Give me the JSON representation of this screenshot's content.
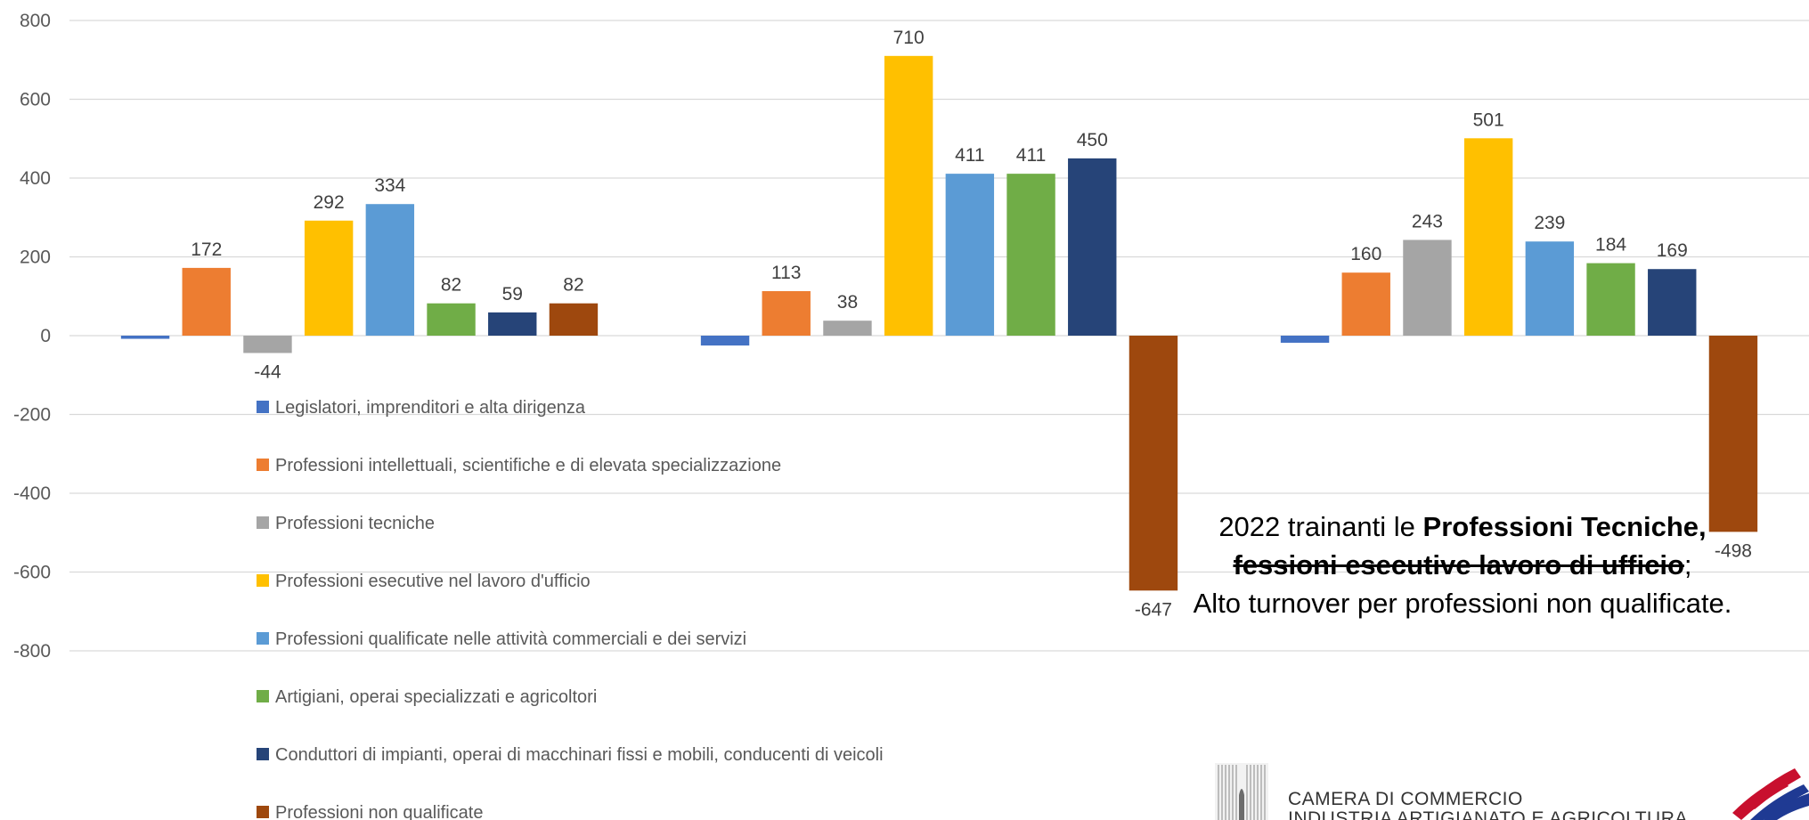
{
  "chart_data": {
    "type": "bar",
    "y_axis": {
      "ticks": [
        "800",
        "600",
        "400",
        "200",
        "0",
        "-200",
        "-400",
        "-600",
        "-800"
      ],
      "ylim": [
        -800,
        800
      ]
    },
    "grid": true,
    "categories": [
      "",
      "",
      ""
    ],
    "series": [
      {
        "name": "Legislatori, imprenditori e alta dirigenza",
        "color": "#4472C4",
        "values": [
          -8,
          -25,
          -18
        ],
        "labels": [
          "",
          "",
          ""
        ]
      },
      {
        "name": "Professioni intellettuali, scientifiche e di elevata specializzazione",
        "color": "#ED7D31",
        "values": [
          172,
          113,
          160
        ],
        "labels": [
          "172",
          "113",
          "160"
        ]
      },
      {
        "name": "Professioni tecniche",
        "color": "#A5A5A5",
        "values": [
          -44,
          38,
          243
        ],
        "labels": [
          "-44",
          "38",
          "243"
        ]
      },
      {
        "name": "Professioni esecutive nel lavoro d'ufficio",
        "color": "#FFC000",
        "values": [
          292,
          710,
          501
        ],
        "labels": [
          "292",
          "710",
          "501"
        ]
      },
      {
        "name": "Professioni qualificate nelle attività commerciali e dei servizi",
        "color": "#5B9BD5",
        "values": [
          334,
          411,
          239
        ],
        "labels": [
          "334",
          "411",
          "239"
        ]
      },
      {
        "name": "Artigiani, operai specializzati e agricoltori",
        "color": "#70AD47",
        "values": [
          82,
          411,
          184
        ],
        "labels": [
          "82",
          "411",
          "184"
        ]
      },
      {
        "name": "Conduttori di impianti, operai di macchinari fissi e mobili, conducenti di veicoli",
        "color": "#264478",
        "values": [
          59,
          450,
          169
        ],
        "labels": [
          "59",
          "450",
          "169"
        ]
      },
      {
        "name": "Professioni non qualificate",
        "color": "#9E480E",
        "values": [
          82,
          -647,
          -498
        ],
        "labels": [
          "82",
          "-647",
          "-498"
        ]
      }
    ],
    "legend_position": "left, over plot"
  },
  "annotation": {
    "line1_text": "2022 trainanti le ",
    "line1_bold": "Professioni Tecniche,",
    "line2_bold": "fessioni esecutive lavoro di ufficio",
    "line2_text": ";",
    "line3_text": "Alto turnover per professioni non qualificate."
  },
  "logo": {
    "line1": "CAMERA DI COMMERCIO",
    "line2": "INDUSTRIA ARTIGIANATO E AGRICOLTURA"
  }
}
